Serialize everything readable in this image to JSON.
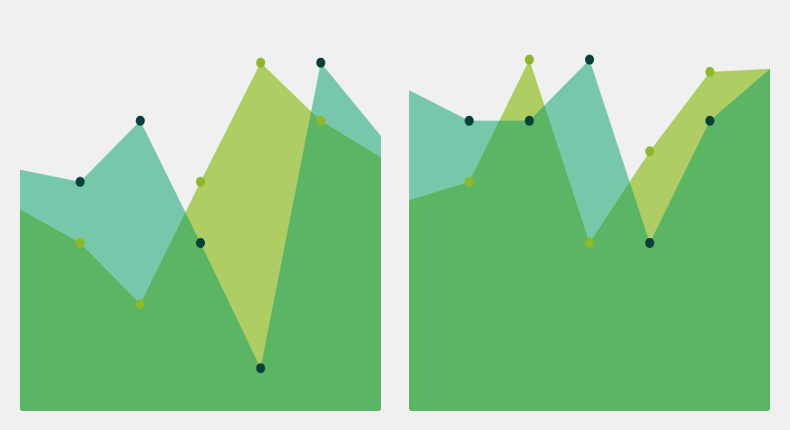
{
  "page": {
    "background": "#f0f0f0"
  },
  "colors": {
    "teal_area": "#77c8aa",
    "lime_area": "#aecd62",
    "overlap_area": "#5ab564",
    "teal_marker": "#063f3c",
    "lime_marker": "#8db82a"
  },
  "chart_data": [
    {
      "type": "area",
      "title": "",
      "xlabel": "",
      "ylabel": "",
      "grid": false,
      "legend": "none",
      "x": [
        0,
        1,
        2,
        3,
        4,
        5,
        6
      ],
      "xlim": [
        0,
        6
      ],
      "ylim": [
        0,
        6
      ],
      "series": [
        {
          "color_key": "teal",
          "values": [
            3.95,
            3.75,
            4.75,
            2.75,
            0.7,
            5.7,
            4.5
          ],
          "markers_at": [
            1,
            2,
            3,
            4,
            5
          ]
        },
        {
          "color_key": "lime",
          "values": [
            3.3,
            2.75,
            1.75,
            3.75,
            5.7,
            4.75,
            4.15
          ],
          "markers_at": [
            1,
            2,
            3,
            4,
            5
          ]
        }
      ]
    },
    {
      "type": "area",
      "title": "",
      "xlabel": "",
      "ylabel": "",
      "grid": false,
      "legend": "none",
      "x": [
        0,
        1,
        2,
        3,
        4,
        5,
        6
      ],
      "xlim": [
        0,
        6
      ],
      "ylim": [
        0,
        6
      ],
      "series": [
        {
          "color_key": "teal",
          "values": [
            5.25,
            4.75,
            4.75,
            5.75,
            2.75,
            4.75,
            5.6
          ],
          "markers_at": [
            1,
            2,
            3,
            4,
            5
          ]
        },
        {
          "color_key": "lime",
          "values": [
            3.45,
            3.75,
            5.75,
            2.75,
            4.25,
            5.55,
            5.6
          ],
          "markers_at": [
            1,
            2,
            3,
            4,
            5
          ]
        }
      ]
    }
  ]
}
